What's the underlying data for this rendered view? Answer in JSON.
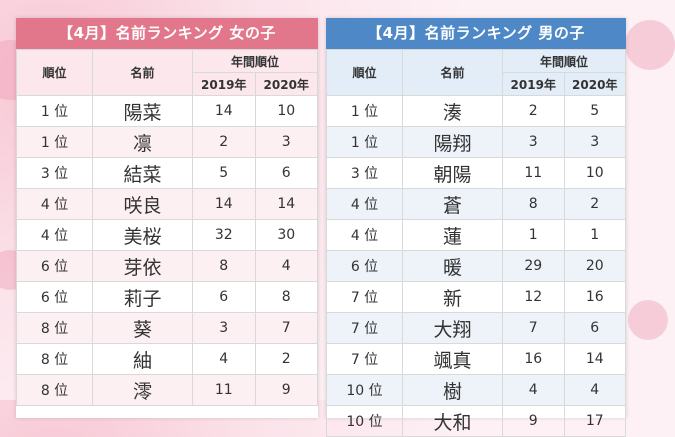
{
  "girls": {
    "title": "【4月】名前ランキング 女の子",
    "headers": {
      "rank": "順位",
      "name": "名前",
      "year_group": "年間順位",
      "y2019": "2019年",
      "y2020": "2020年"
    },
    "rows": [
      {
        "rank": "1 位",
        "name": "陽菜",
        "y2019": "14",
        "y2020": "10"
      },
      {
        "rank": "1 位",
        "name": "凛",
        "y2019": "2",
        "y2020": "3"
      },
      {
        "rank": "3 位",
        "name": "結菜",
        "y2019": "5",
        "y2020": "6"
      },
      {
        "rank": "4 位",
        "name": "咲良",
        "y2019": "14",
        "y2020": "14"
      },
      {
        "rank": "4 位",
        "name": "美桜",
        "y2019": "32",
        "y2020": "30"
      },
      {
        "rank": "6 位",
        "name": "芽依",
        "y2019": "8",
        "y2020": "4"
      },
      {
        "rank": "6 位",
        "name": "莉子",
        "y2019": "6",
        "y2020": "8"
      },
      {
        "rank": "8 位",
        "name": "葵",
        "y2019": "3",
        "y2020": "7"
      },
      {
        "rank": "8 位",
        "name": "紬",
        "y2019": "4",
        "y2020": "2"
      },
      {
        "rank": "8 位",
        "name": "澪",
        "y2019": "11",
        "y2020": "9"
      }
    ]
  },
  "boys": {
    "title": "【4月】名前ランキング 男の子",
    "headers": {
      "rank": "順位",
      "name": "名前",
      "year_group": "年間順位",
      "y2019": "2019年",
      "y2020": "2020年"
    },
    "rows": [
      {
        "rank": "1 位",
        "name": "湊",
        "y2019": "2",
        "y2020": "5"
      },
      {
        "rank": "1 位",
        "name": "陽翔",
        "y2019": "3",
        "y2020": "3"
      },
      {
        "rank": "3 位",
        "name": "朝陽",
        "y2019": "11",
        "y2020": "10"
      },
      {
        "rank": "4 位",
        "name": "蒼",
        "y2019": "8",
        "y2020": "2"
      },
      {
        "rank": "4 位",
        "name": "蓮",
        "y2019": "1",
        "y2020": "1"
      },
      {
        "rank": "6 位",
        "name": "暖",
        "y2019": "29",
        "y2020": "20"
      },
      {
        "rank": "7 位",
        "name": "新",
        "y2019": "12",
        "y2020": "16"
      },
      {
        "rank": "7 位",
        "name": "大翔",
        "y2019": "7",
        "y2020": "6"
      },
      {
        "rank": "7 位",
        "name": "颯真",
        "y2019": "16",
        "y2020": "14"
      },
      {
        "rank": "10 位",
        "name": "樹",
        "y2019": "4",
        "y2020": "4"
      },
      {
        "rank": "10 位",
        "name": "大和",
        "y2019": "9",
        "y2020": "17"
      }
    ]
  },
  "colors": {
    "girls_accent": "#e2778c",
    "boys_accent": "#4f88c6",
    "background": "#fbe3ea"
  }
}
